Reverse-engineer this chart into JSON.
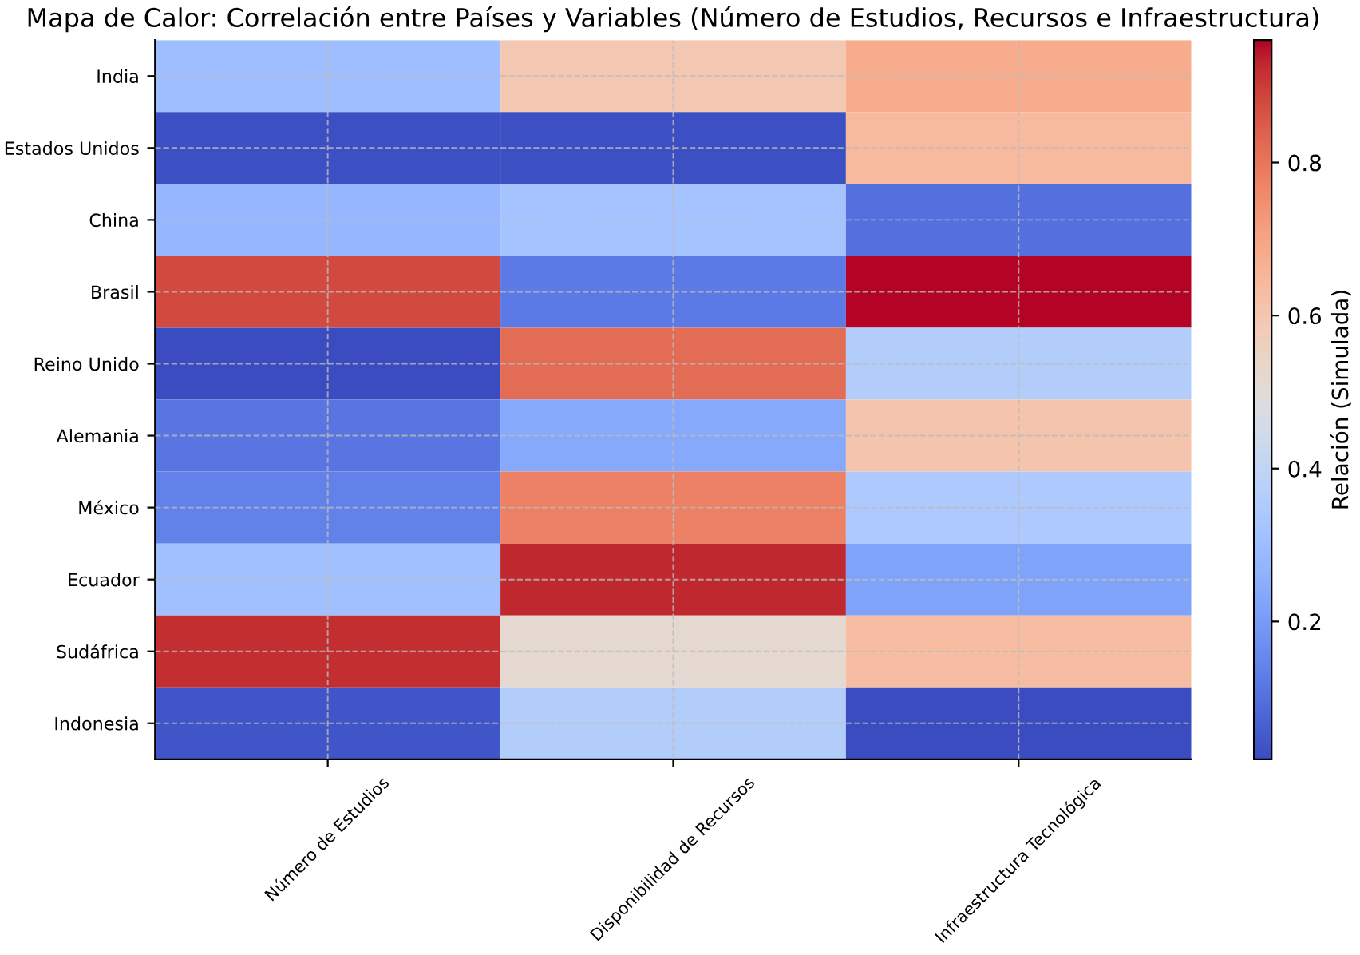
{
  "chart_data": {
    "type": "heatmap",
    "title": "Mapa de Calor: Correlación entre Países y Variables (Número de Estudios, Recursos e Infraestructura)",
    "categories": [
      "Número de Estudios",
      "Disponibilidad de Recursos",
      "Infraestructura Tecnológica"
    ],
    "y_categories": [
      "India",
      "Estados Unidos",
      "China",
      "Brasil",
      "Reino Unido",
      "Alemania",
      "México",
      "Ecuador",
      "Sudáfrica",
      "Indonesia"
    ],
    "cells": [
      [
        0.3,
        0.6,
        0.68
      ],
      [
        0.03,
        0.03,
        0.64
      ],
      [
        0.28,
        0.32,
        0.1
      ],
      [
        0.88,
        0.12,
        0.96
      ],
      [
        0.02,
        0.82,
        0.36
      ],
      [
        0.11,
        0.24,
        0.61
      ],
      [
        0.14,
        0.78,
        0.34
      ],
      [
        0.31,
        0.93,
        0.22
      ],
      [
        0.92,
        0.52,
        0.63
      ],
      [
        0.04,
        0.36,
        0.02
      ]
    ],
    "clim": [
      0.02,
      0.96
    ],
    "cticks": [
      0.2,
      0.4,
      0.6,
      0.8
    ],
    "clabel": "Relación (Simulada)",
    "grid": true
  }
}
